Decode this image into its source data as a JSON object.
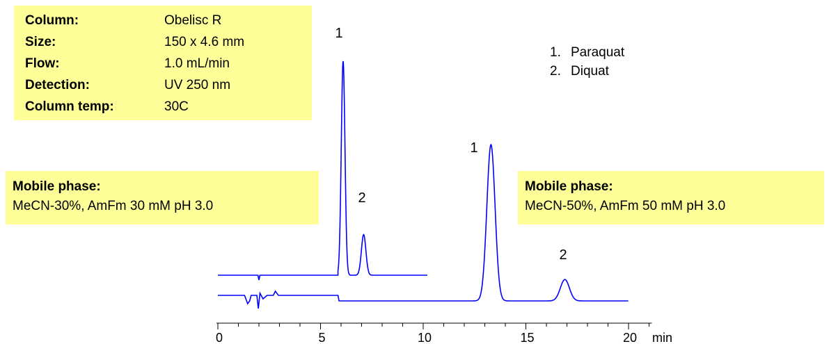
{
  "conditions": [
    {
      "label": "Column:",
      "value": "Obelisc R"
    },
    {
      "label": "Size:",
      "value": "150 x 4.6 mm"
    },
    {
      "label": "Flow:",
      "value": "1.0 mL/min"
    },
    {
      "label": "Detection:",
      "value": "UV 250 nm"
    },
    {
      "label": "Column temp:",
      "value": "30C"
    }
  ],
  "mobile_phase_left": {
    "title": "Mobile phase:",
    "text": "MeCN-30%, AmFm 30 mM pH 3.0"
  },
  "mobile_phase_right": {
    "title": "Mobile phase:",
    "text": "MeCN-50%, AmFm 50 mM pH 3.0"
  },
  "legend": [
    {
      "num": "1.",
      "name": "Paraquat"
    },
    {
      "num": "2.",
      "name": "Diquat"
    }
  ],
  "colors": {
    "trace": "#0000ff",
    "box": "#ffff99"
  },
  "chart_data": {
    "type": "line",
    "xlabel": "min",
    "xlim": [
      0,
      21
    ],
    "xticks": [
      0,
      5,
      10,
      15,
      20
    ],
    "xtick_labels": [
      "0",
      "5",
      "10",
      "15",
      "20"
    ],
    "series": [
      {
        "label": "MeCN-30%, AmFm 30 mM pH 3.0",
        "peaks": [
          {
            "label": "1",
            "time": 6.1,
            "rel_height": 1.0
          },
          {
            "label": "2",
            "time": 7.1,
            "rel_height": 0.19
          }
        ],
        "end_time": 10.2
      },
      {
        "label": "MeCN-50%, AmFm 50 mM pH 3.0",
        "peaks": [
          {
            "label": "1",
            "time": 13.3,
            "rel_height": 0.73
          },
          {
            "label": "2",
            "time": 16.9,
            "rel_height": 0.1
          }
        ],
        "end_time": 20.0
      }
    ]
  }
}
